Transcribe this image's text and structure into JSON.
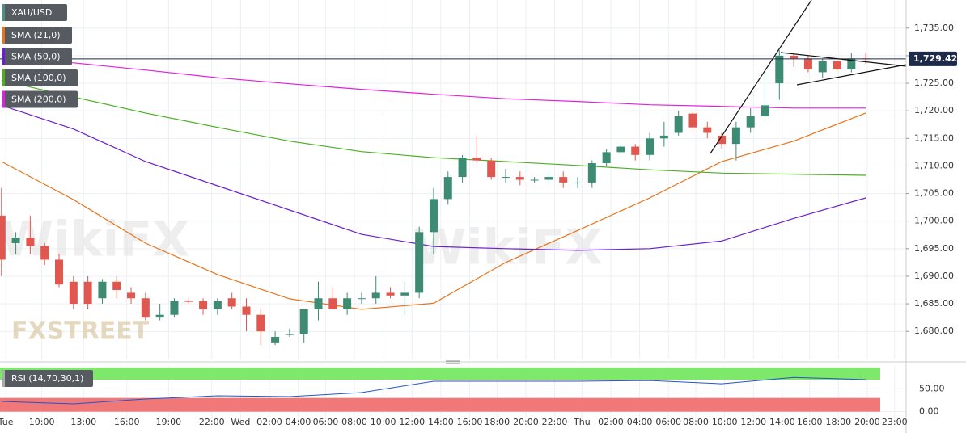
{
  "chart_data": {
    "type": "candlestick",
    "symbol": "XAU/USD",
    "up_color": "#3d8b73",
    "down_color": "#e0574f",
    "candles": {
      "open": [
        1701,
        1696,
        1697,
        1695.5,
        1693,
        1689,
        1689,
        1686,
        1689,
        1687,
        1686,
        1682.5,
        1683,
        1685.5,
        1685.5,
        1684,
        1686,
        1684.5,
        1683,
        1678,
        1679.5,
        1679.5,
        1684,
        1686,
        1684,
        1686,
        1686,
        1687,
        1686.5,
        1687,
        1698,
        1704,
        1708,
        1711.5,
        1711,
        1708,
        1708,
        1707.5,
        1707.5,
        1708,
        1707,
        1707,
        1710.5,
        1712.5,
        1713.5,
        1712,
        1715,
        1716,
        1719.5,
        1717,
        1715.5,
        1714,
        1717,
        1719,
        1725,
        1730,
        1729.5,
        1727,
        1729,
        1727.5,
        1729.5
      ],
      "high": [
        1706,
        1698,
        1701,
        1696,
        1694,
        1690,
        1690,
        1689.5,
        1690,
        1688,
        1687,
        1685,
        1686,
        1686,
        1686,
        1686,
        1687,
        1686,
        1684,
        1680,
        1680.5,
        1684,
        1689,
        1688,
        1687,
        1687,
        1690,
        1688,
        1689,
        1699,
        1706,
        1709,
        1712,
        1715.5,
        1711.5,
        1709.5,
        1709,
        1708,
        1709,
        1709,
        1708,
        1711,
        1713,
        1714,
        1714,
        1716,
        1718,
        1720,
        1720,
        1718,
        1716,
        1718,
        1720.5,
        1727,
        1731,
        1730.5,
        1730,
        1729.5,
        1729.5,
        1730.5,
        1730.5
      ],
      "low": [
        1690,
        1694,
        1694,
        1692,
        1688,
        1684,
        1684,
        1685,
        1686,
        1685,
        1682,
        1682,
        1682.5,
        1685,
        1683,
        1683,
        1684,
        1680,
        1677.5,
        1677.5,
        1679,
        1678,
        1682,
        1684,
        1683,
        1685,
        1685,
        1686,
        1683,
        1686,
        1694,
        1703,
        1707,
        1710.5,
        1707.5,
        1707,
        1706.5,
        1707,
        1707,
        1706,
        1706,
        1706,
        1710,
        1712,
        1711,
        1711,
        1713.5,
        1715.5,
        1716,
        1715,
        1713,
        1711,
        1716,
        1718.5,
        1722,
        1728,
        1727,
        1726,
        1727,
        1727,
        1728.5
      ],
      "close": [
        1693,
        1697,
        1695.5,
        1693,
        1688.5,
        1685,
        1685,
        1689,
        1687.5,
        1686,
        1682.5,
        1683,
        1685.5,
        1685.4,
        1684,
        1685.5,
        1684.5,
        1683,
        1680,
        1679,
        1679.5,
        1684,
        1686,
        1684,
        1686,
        1686,
        1687,
        1686.5,
        1687,
        1698,
        1704,
        1708,
        1711.5,
        1711,
        1708,
        1708,
        1707.5,
        1707.5,
        1708,
        1707,
        1707,
        1710.5,
        1712.5,
        1713.5,
        1712,
        1715,
        1715.5,
        1719,
        1717,
        1716,
        1714,
        1717,
        1719,
        1721,
        1730,
        1729.5,
        1727.5,
        1729,
        1727.5,
        1729.5,
        1729.42
      ]
    },
    "series": [
      {
        "name": "SMA (21,0)",
        "color": "#e8731a",
        "x": [
          0,
          5,
          10,
          15,
          20,
          25,
          30,
          35,
          40,
          45,
          50,
          55,
          60
        ],
        "values": [
          1710.8,
          1703.9,
          1696,
          1690.3,
          1685.9,
          1684,
          1685.1,
          1692.5,
          1698.3,
          1704.2,
          1710.8,
          1714.5,
          1719.6
        ]
      },
      {
        "name": "SMA (50,0)",
        "color": "#6a1fd0",
        "x": [
          0,
          5,
          10,
          15,
          20,
          25,
          30,
          35,
          40,
          45,
          50,
          55,
          60
        ],
        "values": [
          1721,
          1716.7,
          1710.8,
          1706.4,
          1702,
          1697.6,
          1695.4,
          1695,
          1694.7,
          1695,
          1696.4,
          1700.5,
          1704.2
        ]
      },
      {
        "name": "SMA (100,0)",
        "color": "#4caf22",
        "x": [
          0,
          5,
          10,
          15,
          20,
          25,
          30,
          35,
          40,
          45,
          50,
          55,
          60
        ],
        "values": [
          1725.5,
          1722.5,
          1719.6,
          1717,
          1714.5,
          1712.6,
          1711.5,
          1710.8,
          1710.1,
          1709.3,
          1708.7,
          1708.5,
          1708.3
        ]
      },
      {
        "name": "SMA (200,0)",
        "color": "#e020e0",
        "x": [
          0,
          5,
          10,
          15,
          20,
          25,
          30,
          35,
          40,
          45,
          50,
          55,
          60
        ],
        "values": [
          1730.2,
          1728.7,
          1727.4,
          1726,
          1724.9,
          1723.9,
          1723,
          1722.2,
          1721.7,
          1721.1,
          1720.8,
          1720.5,
          1720.5
        ]
      }
    ],
    "last_price": {
      "value": 1729.42,
      "label": "1,729.42"
    },
    "xlim": [
      -0.1,
      62.8
    ],
    "ylim": [
      1674.9,
      1740.1
    ],
    "yticks": [
      {
        "value": 1680,
        "label": "1,680.00"
      },
      {
        "value": 1685,
        "label": "1,685.00"
      },
      {
        "value": 1690,
        "label": "1,690.00"
      },
      {
        "value": 1695,
        "label": "1,695.00"
      },
      {
        "value": 1700,
        "label": "1,700.00"
      },
      {
        "value": 1705,
        "label": "1,705.00"
      },
      {
        "value": 1710,
        "label": "1,710.00"
      },
      {
        "value": 1715,
        "label": "1,715.00"
      },
      {
        "value": 1720,
        "label": "1,720.00"
      },
      {
        "value": 1725,
        "label": "1,725.00"
      },
      {
        "value": 1730,
        "label": "1,730.00"
      },
      {
        "value": 1735,
        "label": "1,735.00"
      }
    ],
    "xticks": [
      {
        "value": 0.3,
        "label": "Tue"
      },
      {
        "value": 2.8,
        "label": "10:00"
      },
      {
        "value": 5.7,
        "label": "13:00"
      },
      {
        "value": 8.7,
        "label": "16:00"
      },
      {
        "value": 11.6,
        "label": "19:00"
      },
      {
        "value": 14.6,
        "label": "22:00"
      },
      {
        "value": 16.6,
        "label": "Wed"
      },
      {
        "value": 18.6,
        "label": "02:00"
      },
      {
        "value": 20.6,
        "label": "04:00"
      },
      {
        "value": 22.5,
        "label": "06:00"
      },
      {
        "value": 24.5,
        "label": "08:00"
      },
      {
        "value": 26.5,
        "label": "10:00"
      },
      {
        "value": 28.5,
        "label": "12:00"
      },
      {
        "value": 30.5,
        "label": "14:00"
      },
      {
        "value": 32.5,
        "label": "16:00"
      },
      {
        "value": 34.4,
        "label": "18:00"
      },
      {
        "value": 36.4,
        "label": "20:00"
      },
      {
        "value": 38.4,
        "label": "22:00"
      },
      {
        "value": 40.3,
        "label": "Thu"
      },
      {
        "value": 42.3,
        "label": "02:00"
      },
      {
        "value": 44.3,
        "label": "04:00"
      },
      {
        "value": 46.3,
        "label": "06:00"
      },
      {
        "value": 48.2,
        "label": "08:00"
      },
      {
        "value": 50.2,
        "label": "10:00"
      },
      {
        "value": 52.2,
        "label": "12:00"
      },
      {
        "value": 54.2,
        "label": "14:00"
      },
      {
        "value": 56.1,
        "label": "16:00"
      },
      {
        "value": 58.1,
        "label": "18:00"
      },
      {
        "value": 60.1,
        "label": "20:00"
      },
      {
        "value": 62.0,
        "label": "23:00"
      }
    ],
    "grid": true,
    "rsi": {
      "name": "RSI (14,70,30,1)",
      "color": "#2255cc",
      "x": [
        0,
        5,
        10,
        15,
        20,
        25,
        30,
        35,
        40,
        45,
        50,
        55,
        60
      ],
      "values": [
        22.4,
        17,
        27.6,
        34.7,
        33,
        41.8,
        66.5,
        66.5,
        66.5,
        68,
        61,
        75,
        70
      ],
      "upper": 70,
      "lower": 30,
      "ylim": [
        -20,
        100
      ],
      "yticks": [
        {
          "value": 0,
          "label": "0.00"
        },
        {
          "value": 50,
          "label": "50.00"
        }
      ]
    },
    "watermarks": [
      "FXSTREET",
      "WikiFX"
    ]
  }
}
